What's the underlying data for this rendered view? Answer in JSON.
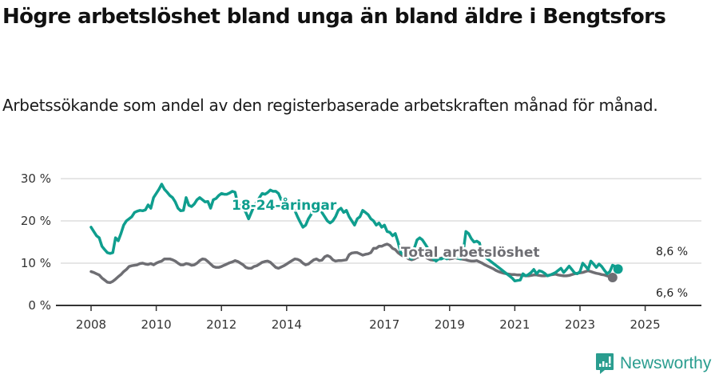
{
  "header": {
    "title": "Högre arbetslöshet bland unga än bland äldre i Bengtsfors",
    "subtitle": "Arbetssökande som andel av den registerbaserade arbetskraften månad för månad."
  },
  "branding": {
    "logo_text": "Newsworthy",
    "logo_icon": "bar-chart-speech-bubble-icon",
    "color": "#2a9d8f"
  },
  "colors": {
    "young": "#0f9e8e",
    "total": "#6e6e73",
    "gridline": "#dddddd",
    "axis": "#333333"
  },
  "chart_data": {
    "type": "line",
    "title": "Högre arbetslöshet bland unga än bland äldre i Bengtsfors",
    "subtitle": "Arbetssökande som andel av den registerbaserade arbetskraften månad för månad.",
    "xlabel": "",
    "ylabel": "",
    "ylim": [
      0,
      30
    ],
    "y_ticks": [
      "0 %",
      "10 %",
      "20 %",
      "30 %"
    ],
    "x_ticks": [
      "2008",
      "2010",
      "2012",
      "2014",
      "2017",
      "2019",
      "2021",
      "2023",
      "2025"
    ],
    "grid": true,
    "legend": "inline labels",
    "x_start": 2008.0,
    "x_step_months": 1,
    "series": [
      {
        "name": "18-24-åringar",
        "label": "18-24-åringar",
        "end_label": "8,6 %",
        "values": [
          18.5,
          17.5,
          16.5,
          16.0,
          14.0,
          13.2,
          12.5,
          12.3,
          12.5,
          16.0,
          15.3,
          17.0,
          19.0,
          20.0,
          20.5,
          21.0,
          22.0,
          22.3,
          22.5,
          22.4,
          22.6,
          23.8,
          23.0,
          25.5,
          26.5,
          27.5,
          28.7,
          27.5,
          26.8,
          26.0,
          25.5,
          24.5,
          23.0,
          22.4,
          22.5,
          25.5,
          23.7,
          23.4,
          24.0,
          25.0,
          25.5,
          25.0,
          24.5,
          24.6,
          23.0,
          25.0,
          25.3,
          26.0,
          26.5,
          26.3,
          26.3,
          26.6,
          27.0,
          26.8,
          24.0,
          23.5,
          23.0,
          22.0,
          20.5,
          22.0,
          23.5,
          24.5,
          25.5,
          26.5,
          26.3,
          26.7,
          27.3,
          27.0,
          27.0,
          26.5,
          25.0,
          25.5,
          25.0,
          24.0,
          23.0,
          22.5,
          21.0,
          19.7,
          18.5,
          19.0,
          20.5,
          21.5,
          24.5,
          24.0,
          23.5,
          22.0,
          21.0,
          20.0,
          19.5,
          20.0,
          21.0,
          22.5,
          23.0,
          22.0,
          22.5,
          21.0,
          20.0,
          19.0,
          20.5,
          21.0,
          22.5,
          22.0,
          21.5,
          20.5,
          20.0,
          19.0,
          19.5,
          18.5,
          19.0,
          17.5,
          17.3,
          16.5,
          17.0,
          15.0,
          12.5,
          12.0,
          12.5,
          11.5,
          11.0,
          13.5,
          15.5,
          16.0,
          15.5,
          14.5,
          13.5,
          12.0,
          11.0,
          10.5,
          11.0,
          11.0,
          11.3,
          11.0,
          11.5,
          11.8,
          11.5,
          11.2,
          11.0,
          12.5,
          17.5,
          17.0,
          15.8,
          15.0,
          15.2,
          14.8,
          12.0,
          11.5,
          11.0,
          10.5,
          10.0,
          9.5,
          9.0,
          8.5,
          8.0,
          7.5,
          7.0,
          6.5,
          5.8,
          5.9,
          6.0,
          7.5,
          7.0,
          7.3,
          7.8,
          8.5,
          7.5,
          8.2,
          8.0,
          7.6,
          7.0,
          7.2,
          7.5,
          7.8,
          8.3,
          8.8,
          7.8,
          8.5,
          9.3,
          8.5,
          7.7,
          7.5,
          8.0,
          10.0,
          9.3,
          8.5,
          10.5,
          9.8,
          9.0,
          9.8,
          9.2,
          8.3,
          7.5,
          8.0,
          9.5,
          9.2,
          8.6
        ],
        "last_value": 8.6
      },
      {
        "name": "Total arbetslöshet",
        "label": "Total arbetslöshet",
        "end_label": "6,6 %",
        "values": [
          8.0,
          7.8,
          7.5,
          7.2,
          6.5,
          6.0,
          5.5,
          5.4,
          5.7,
          6.2,
          6.8,
          7.3,
          8.0,
          8.5,
          9.2,
          9.4,
          9.5,
          9.6,
          9.9,
          10.0,
          9.8,
          9.7,
          9.9,
          9.6,
          10.0,
          10.3,
          10.5,
          11.0,
          11.0,
          11.0,
          10.8,
          10.5,
          10.0,
          9.6,
          9.6,
          9.9,
          9.8,
          9.5,
          9.6,
          10.0,
          10.6,
          11.0,
          10.9,
          10.4,
          9.8,
          9.2,
          9.0,
          9.0,
          9.2,
          9.5,
          9.8,
          10.1,
          10.3,
          10.6,
          10.4,
          10.0,
          9.6,
          9.0,
          8.8,
          8.8,
          9.2,
          9.4,
          9.8,
          10.2,
          10.4,
          10.5,
          10.2,
          9.6,
          9.0,
          8.8,
          9.1,
          9.4,
          9.8,
          10.2,
          10.6,
          11.0,
          10.9,
          10.6,
          10.0,
          9.6,
          9.8,
          10.3,
          10.8,
          11.0,
          10.6,
          10.7,
          11.5,
          11.8,
          11.5,
          10.8,
          10.5,
          10.6,
          10.6,
          10.7,
          10.8,
          12.0,
          12.4,
          12.5,
          12.5,
          12.2,
          11.9,
          12.1,
          12.2,
          12.5,
          13.5,
          13.5,
          14.0,
          14.0,
          14.3,
          14.5,
          14.2,
          13.5,
          13.2,
          12.5,
          12.0,
          11.6,
          11.4,
          11.0,
          10.8,
          11.0,
          11.4,
          11.5,
          11.6,
          11.4,
          11.1,
          10.8,
          10.7,
          10.9,
          11.0,
          11.2,
          11.3,
          11.2,
          11.0,
          11.1,
          11.3,
          11.1,
          11.0,
          10.9,
          10.8,
          10.6,
          10.5,
          10.5,
          10.6,
          10.3,
          10.0,
          9.6,
          9.3,
          9.0,
          8.7,
          8.3,
          8.0,
          7.8,
          7.6,
          7.5,
          7.4,
          7.3,
          7.3,
          7.2,
          7.2,
          7.1,
          7.0,
          7.0,
          7.1,
          7.2,
          7.2,
          7.1,
          7.0,
          7.0,
          7.1,
          7.2,
          7.3,
          7.4,
          7.2,
          7.1,
          7.0,
          7.0,
          7.1,
          7.3,
          7.5,
          7.6,
          7.7,
          7.8,
          8.0,
          8.2,
          8.0,
          7.8,
          7.6,
          7.5,
          7.3,
          7.2,
          7.0,
          6.8,
          6.6
        ],
        "last_value": 6.6
      }
    ]
  }
}
